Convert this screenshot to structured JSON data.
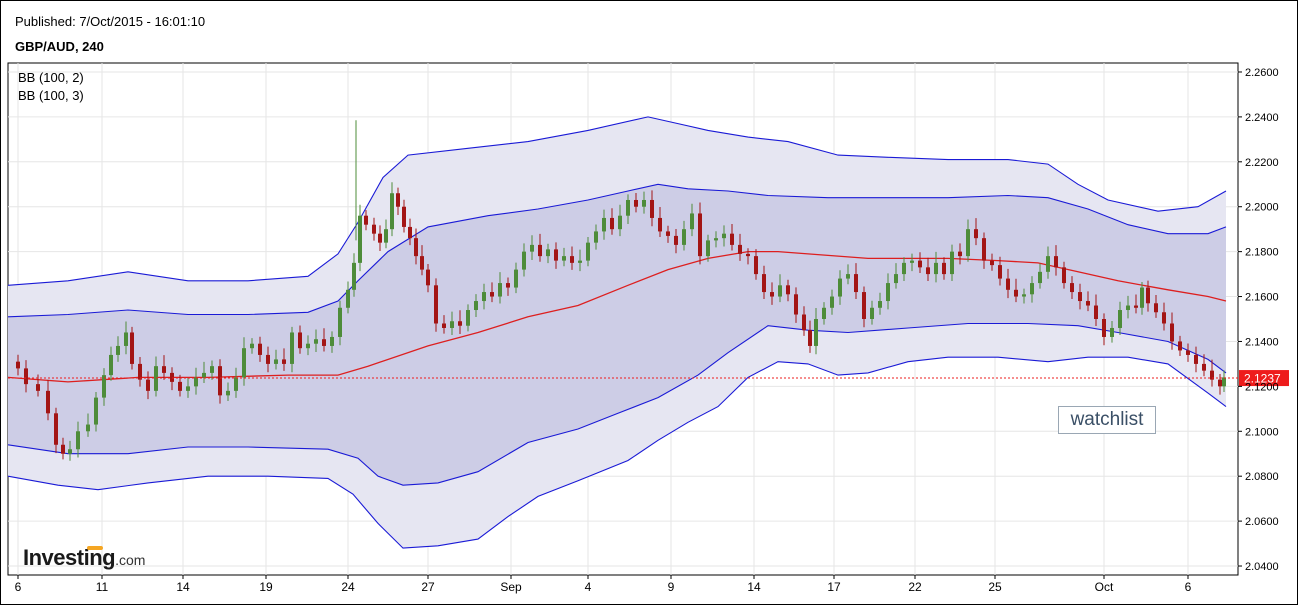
{
  "header": {
    "published": "Published: 7/Oct/2015 - 16:01:10",
    "symbol": "GBP/AUD, 240"
  },
  "watchlist_label": "watchlist",
  "logo": {
    "main": "Investing",
    "suffix": ".com"
  },
  "colors": {
    "outer_band_fill": "#e6e6f2",
    "inner_band_fill": "#cdcde6",
    "band_line": "#1a1ad6",
    "middle_line": "#dd1f1f",
    "bull_candle": "#4e8c3a",
    "bear_candle": "#a31515",
    "last_price_tag": "#ee1c1c"
  },
  "chart_data": {
    "type": "candlestick",
    "legend": [
      "BB (100, 2)",
      "BB (100, 3)"
    ],
    "legend_placement": "top-left",
    "y_axis": {
      "position": "right",
      "range": [
        2.036,
        2.264
      ],
      "ticks": [
        "2.2600",
        "2.2400",
        "2.2200",
        "2.2000",
        "2.1800",
        "2.1600",
        "2.1400",
        "2.1200",
        "2.1000",
        "2.0800",
        "2.0600",
        "2.0400"
      ],
      "tick_values": [
        2.26,
        2.24,
        2.22,
        2.2,
        2.18,
        2.16,
        2.14,
        2.12,
        2.1,
        2.08,
        2.06,
        2.04
      ]
    },
    "x_axis": {
      "range": [
        0,
        1230
      ],
      "ticks": [
        {
          "label": "6",
          "x": 10
        },
        {
          "label": "11",
          "x": 94
        },
        {
          "label": "14",
          "x": 175
        },
        {
          "label": "19",
          "x": 258
        },
        {
          "label": "24",
          "x": 340
        },
        {
          "label": "27",
          "x": 420
        },
        {
          "label": "Sep",
          "x": 503
        },
        {
          "label": "4",
          "x": 580
        },
        {
          "label": "9",
          "x": 663
        },
        {
          "label": "14",
          "x": 746
        },
        {
          "label": "17",
          "x": 826
        },
        {
          "label": "22",
          "x": 907
        },
        {
          "label": "25",
          "x": 987
        },
        {
          "label": "Oct",
          "x": 1096
        },
        {
          "label": "6",
          "x": 1180
        }
      ]
    },
    "grid": true,
    "last_price": 2.1237,
    "last_price_label": "2.1237",
    "middle_band": [
      [
        0,
        2.124
      ],
      [
        60,
        2.122
      ],
      [
        130,
        2.124
      ],
      [
        200,
        2.124
      ],
      [
        280,
        2.125
      ],
      [
        330,
        2.125
      ],
      [
        360,
        2.129
      ],
      [
        420,
        2.138
      ],
      [
        470,
        2.144
      ],
      [
        520,
        2.151
      ],
      [
        570,
        2.156
      ],
      [
        620,
        2.165
      ],
      [
        660,
        2.172
      ],
      [
        700,
        2.177
      ],
      [
        740,
        2.18
      ],
      [
        770,
        2.18
      ],
      [
        800,
        2.179
      ],
      [
        860,
        2.177
      ],
      [
        900,
        2.177
      ],
      [
        940,
        2.177
      ],
      [
        990,
        2.176
      ],
      [
        1030,
        2.175
      ],
      [
        1070,
        2.171
      ],
      [
        1110,
        2.167
      ],
      [
        1160,
        2.163
      ],
      [
        1200,
        2.16
      ],
      [
        1218,
        2.158
      ]
    ],
    "upper_band_2": [
      [
        0,
        2.151
      ],
      [
        60,
        2.152
      ],
      [
        120,
        2.154
      ],
      [
        180,
        2.152
      ],
      [
        240,
        2.152
      ],
      [
        300,
        2.153
      ],
      [
        330,
        2.158
      ],
      [
        350,
        2.167
      ],
      [
        380,
        2.18
      ],
      [
        420,
        2.191
      ],
      [
        480,
        2.196
      ],
      [
        530,
        2.199
      ],
      [
        580,
        2.203
      ],
      [
        620,
        2.207
      ],
      [
        650,
        2.21
      ],
      [
        680,
        2.208
      ],
      [
        720,
        2.207
      ],
      [
        760,
        2.205
      ],
      [
        820,
        2.204
      ],
      [
        880,
        2.204
      ],
      [
        940,
        2.204
      ],
      [
        1000,
        2.205
      ],
      [
        1040,
        2.204
      ],
      [
        1080,
        2.199
      ],
      [
        1120,
        2.192
      ],
      [
        1160,
        2.188
      ],
      [
        1200,
        2.188
      ],
      [
        1218,
        2.191
      ]
    ],
    "lower_band_2": [
      [
        0,
        2.094
      ],
      [
        60,
        2.09
      ],
      [
        120,
        2.09
      ],
      [
        180,
        2.093
      ],
      [
        240,
        2.093
      ],
      [
        320,
        2.092
      ],
      [
        350,
        2.088
      ],
      [
        370,
        2.08
      ],
      [
        395,
        2.076
      ],
      [
        430,
        2.077
      ],
      [
        470,
        2.082
      ],
      [
        520,
        2.095
      ],
      [
        570,
        2.101
      ],
      [
        610,
        2.108
      ],
      [
        650,
        2.115
      ],
      [
        690,
        2.125
      ],
      [
        720,
        2.135
      ],
      [
        760,
        2.147
      ],
      [
        800,
        2.145
      ],
      [
        840,
        2.144
      ],
      [
        900,
        2.146
      ],
      [
        960,
        2.148
      ],
      [
        1020,
        2.148
      ],
      [
        1070,
        2.147
      ],
      [
        1110,
        2.144
      ],
      [
        1160,
        2.14
      ],
      [
        1200,
        2.132
      ],
      [
        1218,
        2.126
      ]
    ],
    "upper_band_3": [
      [
        0,
        2.165
      ],
      [
        60,
        2.167
      ],
      [
        120,
        2.171
      ],
      [
        180,
        2.167
      ],
      [
        240,
        2.167
      ],
      [
        300,
        2.169
      ],
      [
        330,
        2.179
      ],
      [
        350,
        2.193
      ],
      [
        375,
        2.213
      ],
      [
        400,
        2.223
      ],
      [
        460,
        2.226
      ],
      [
        520,
        2.229
      ],
      [
        580,
        2.234
      ],
      [
        640,
        2.24
      ],
      [
        670,
        2.237
      ],
      [
        700,
        2.234
      ],
      [
        740,
        2.231
      ],
      [
        780,
        2.229
      ],
      [
        830,
        2.223
      ],
      [
        880,
        2.222
      ],
      [
        940,
        2.221
      ],
      [
        1000,
        2.221
      ],
      [
        1040,
        2.219
      ],
      [
        1070,
        2.21
      ],
      [
        1100,
        2.203
      ],
      [
        1150,
        2.198
      ],
      [
        1190,
        2.2
      ],
      [
        1218,
        2.207
      ]
    ],
    "lower_band_3": [
      [
        0,
        2.08
      ],
      [
        50,
        2.076
      ],
      [
        90,
        2.074
      ],
      [
        140,
        2.077
      ],
      [
        200,
        2.08
      ],
      [
        260,
        2.08
      ],
      [
        320,
        2.079
      ],
      [
        345,
        2.072
      ],
      [
        370,
        2.059
      ],
      [
        395,
        2.048
      ],
      [
        430,
        2.049
      ],
      [
        470,
        2.052
      ],
      [
        500,
        2.062
      ],
      [
        530,
        2.071
      ],
      [
        570,
        2.078
      ],
      [
        620,
        2.087
      ],
      [
        650,
        2.096
      ],
      [
        680,
        2.104
      ],
      [
        710,
        2.111
      ],
      [
        740,
        2.124
      ],
      [
        770,
        2.131
      ],
      [
        800,
        2.13
      ],
      [
        830,
        2.125
      ],
      [
        860,
        2.126
      ],
      [
        900,
        2.131
      ],
      [
        940,
        2.133
      ],
      [
        990,
        2.133
      ],
      [
        1040,
        2.131
      ],
      [
        1080,
        2.133
      ],
      [
        1120,
        2.133
      ],
      [
        1160,
        2.13
      ],
      [
        1200,
        2.117
      ],
      [
        1218,
        2.111
      ]
    ],
    "close_path": [
      [
        2,
        2.131
      ],
      [
        10,
        2.128
      ],
      [
        18,
        2.121
      ],
      [
        30,
        2.118
      ],
      [
        40,
        2.108
      ],
      [
        48,
        2.094
      ],
      [
        55,
        2.09
      ],
      [
        62,
        2.092
      ],
      [
        70,
        2.1
      ],
      [
        80,
        2.103
      ],
      [
        88,
        2.115
      ],
      [
        96,
        2.125
      ],
      [
        103,
        2.134
      ],
      [
        110,
        2.138
      ],
      [
        118,
        2.144
      ],
      [
        124,
        2.13
      ],
      [
        132,
        2.123
      ],
      [
        140,
        2.118
      ],
      [
        148,
        2.129
      ],
      [
        156,
        2.126
      ],
      [
        164,
        2.122
      ],
      [
        172,
        2.118
      ],
      [
        180,
        2.12
      ],
      [
        188,
        2.124
      ],
      [
        196,
        2.126
      ],
      [
        204,
        2.129
      ],
      [
        212,
        2.116
      ],
      [
        220,
        2.118
      ],
      [
        228,
        2.124
      ],
      [
        236,
        2.137
      ],
      [
        244,
        2.139
      ],
      [
        252,
        2.134
      ],
      [
        260,
        2.13
      ],
      [
        268,
        2.132
      ],
      [
        276,
        2.13
      ],
      [
        284,
        2.144
      ],
      [
        292,
        2.137
      ],
      [
        300,
        2.139
      ],
      [
        308,
        2.141
      ],
      [
        316,
        2.138
      ],
      [
        324,
        2.142
      ],
      [
        332,
        2.155
      ],
      [
        340,
        2.163
      ],
      [
        346,
        2.175
      ],
      [
        352,
        2.196
      ],
      [
        358,
        2.192
      ],
      [
        366,
        2.188
      ],
      [
        372,
        2.184
      ],
      [
        378,
        2.19
      ],
      [
        384,
        2.206
      ],
      [
        390,
        2.2
      ],
      [
        396,
        2.191
      ],
      [
        402,
        2.186
      ],
      [
        408,
        2.178
      ],
      [
        414,
        2.172
      ],
      [
        420,
        2.165
      ],
      [
        428,
        2.148
      ],
      [
        436,
        2.146
      ],
      [
        444,
        2.149
      ],
      [
        452,
        2.147
      ],
      [
        460,
        2.154
      ],
      [
        468,
        2.158
      ],
      [
        476,
        2.162
      ],
      [
        484,
        2.16
      ],
      [
        492,
        2.166
      ],
      [
        500,
        2.164
      ],
      [
        508,
        2.172
      ],
      [
        516,
        2.18
      ],
      [
        524,
        2.183
      ],
      [
        532,
        2.178
      ],
      [
        540,
        2.181
      ],
      [
        548,
        2.176
      ],
      [
        556,
        2.178
      ],
      [
        564,
        2.175
      ],
      [
        572,
        2.176
      ],
      [
        580,
        2.184
      ],
      [
        588,
        2.189
      ],
      [
        596,
        2.195
      ],
      [
        604,
        2.19
      ],
      [
        612,
        2.196
      ],
      [
        620,
        2.203
      ],
      [
        628,
        2.2
      ],
      [
        636,
        2.203
      ],
      [
        644,
        2.195
      ],
      [
        652,
        2.189
      ],
      [
        660,
        2.187
      ],
      [
        668,
        2.183
      ],
      [
        676,
        2.19
      ],
      [
        684,
        2.197
      ],
      [
        692,
        2.178
      ],
      [
        700,
        2.185
      ],
      [
        708,
        2.186
      ],
      [
        716,
        2.188
      ],
      [
        724,
        2.183
      ],
      [
        732,
        2.179
      ],
      [
        740,
        2.178
      ],
      [
        748,
        2.17
      ],
      [
        756,
        2.162
      ],
      [
        764,
        2.16
      ],
      [
        772,
        2.165
      ],
      [
        780,
        2.161
      ],
      [
        788,
        2.152
      ],
      [
        796,
        2.145
      ],
      [
        802,
        2.138
      ],
      [
        808,
        2.15
      ],
      [
        816,
        2.155
      ],
      [
        824,
        2.16
      ],
      [
        832,
        2.168
      ],
      [
        840,
        2.17
      ],
      [
        848,
        2.162
      ],
      [
        856,
        2.15
      ],
      [
        864,
        2.155
      ],
      [
        872,
        2.158
      ],
      [
        880,
        2.166
      ],
      [
        888,
        2.17
      ],
      [
        896,
        2.175
      ],
      [
        904,
        2.176
      ],
      [
        912,
        2.173
      ],
      [
        920,
        2.17
      ],
      [
        928,
        2.175
      ],
      [
        936,
        2.17
      ],
      [
        944,
        2.18
      ],
      [
        952,
        2.178
      ],
      [
        960,
        2.19
      ],
      [
        968,
        2.186
      ],
      [
        976,
        2.176
      ],
      [
        984,
        2.174
      ],
      [
        992,
        2.168
      ],
      [
        1000,
        2.163
      ],
      [
        1008,
        2.16
      ],
      [
        1016,
        2.161
      ],
      [
        1024,
        2.166
      ],
      [
        1032,
        2.171
      ],
      [
        1040,
        2.178
      ],
      [
        1048,
        2.173
      ],
      [
        1056,
        2.166
      ],
      [
        1064,
        2.162
      ],
      [
        1072,
        2.158
      ],
      [
        1080,
        2.156
      ],
      [
        1088,
        2.15
      ],
      [
        1096,
        2.142
      ],
      [
        1104,
        2.146
      ],
      [
        1112,
        2.154
      ],
      [
        1120,
        2.156
      ],
      [
        1128,
        2.155
      ],
      [
        1134,
        2.164
      ],
      [
        1140,
        2.157
      ],
      [
        1148,
        2.153
      ],
      [
        1156,
        2.148
      ],
      [
        1164,
        2.14
      ],
      [
        1172,
        2.136
      ],
      [
        1180,
        2.134
      ],
      [
        1188,
        2.13
      ],
      [
        1196,
        2.127
      ],
      [
        1204,
        2.123
      ],
      [
        1212,
        2.12
      ],
      [
        1216,
        2.124
      ]
    ]
  }
}
